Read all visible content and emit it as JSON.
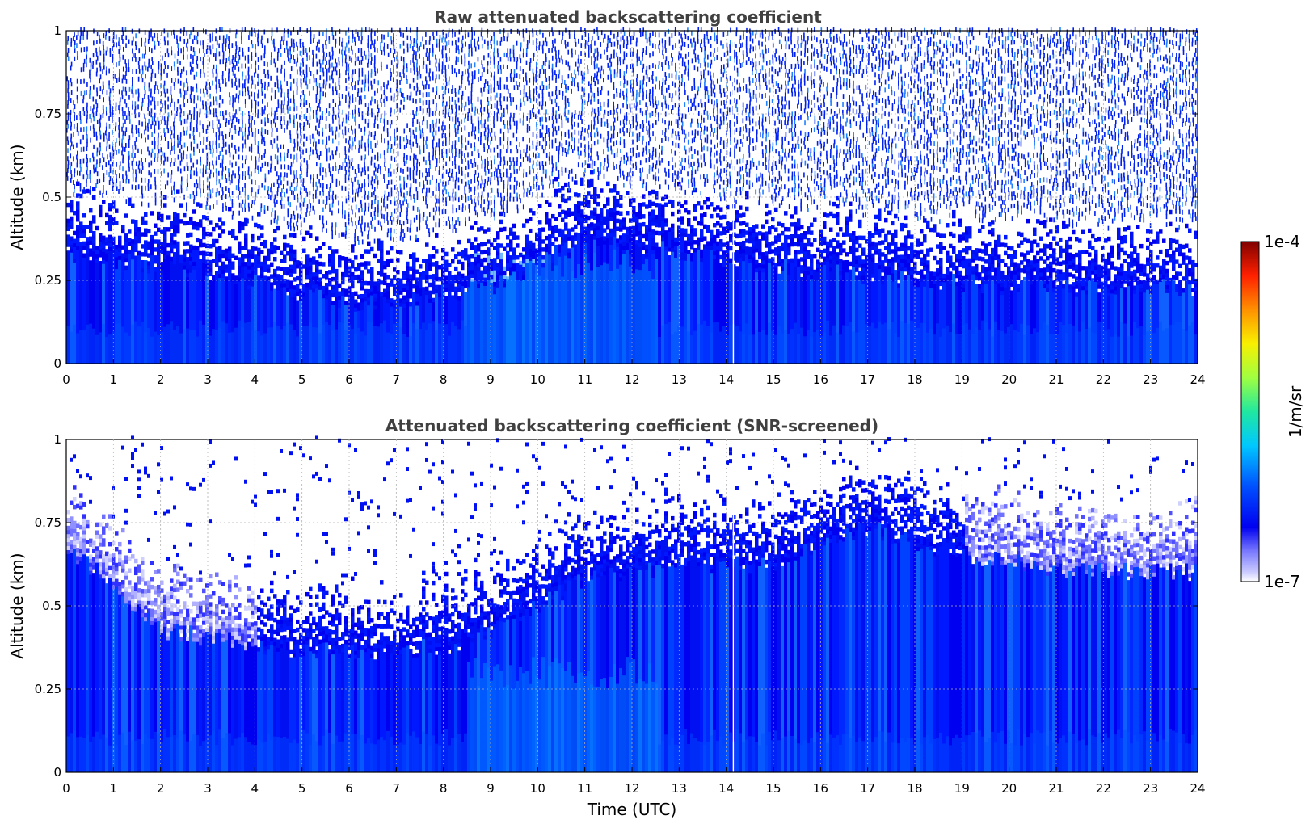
{
  "chart_data": [
    {
      "type": "heatmap",
      "title": "Raw attenuated backscattering coefficient",
      "xlabel": "",
      "ylabel": "Altitude (km)",
      "xlim": [
        0,
        24
      ],
      "ylim": [
        0,
        1
      ],
      "x_ticks": [
        "0",
        "1",
        "2",
        "3",
        "4",
        "5",
        "6",
        "7",
        "8",
        "9",
        "10",
        "11",
        "12",
        "13",
        "14",
        "15",
        "16",
        "17",
        "18",
        "19",
        "20",
        "21",
        "22",
        "23",
        "24"
      ],
      "y_ticks": [
        "0",
        "0.25",
        "0.5",
        "0.75",
        "1"
      ],
      "grid": true,
      "colormap": "jet (white at minimum)",
      "color_scale": "log",
      "description_fields": {
        "signal_layer_top_km_by_hour": [
          {
            "x": 0,
            "y": 0.45
          },
          {
            "x": 3,
            "y": 0.4
          },
          {
            "x": 6,
            "y": 0.3
          },
          {
            "x": 9,
            "y": 0.35
          },
          {
            "x": 11,
            "y": 0.5
          },
          {
            "x": 13,
            "y": 0.45
          },
          {
            "x": 16,
            "y": 0.4
          },
          {
            "x": 20,
            "y": 0.35
          },
          {
            "x": 24,
            "y": 0.35
          }
        ],
        "noise_above_km": 0.5
      }
    },
    {
      "type": "heatmap",
      "title": "Attenuated backscattering coefficient (SNR-screened)",
      "xlabel": "Time (UTC)",
      "ylabel": "Altitude (km)",
      "xlim": [
        0,
        24
      ],
      "ylim": [
        0,
        1
      ],
      "x_ticks": [
        "0",
        "1",
        "2",
        "3",
        "4",
        "5",
        "6",
        "7",
        "8",
        "9",
        "10",
        "11",
        "12",
        "13",
        "14",
        "15",
        "16",
        "17",
        "18",
        "19",
        "20",
        "21",
        "22",
        "23",
        "24"
      ],
      "y_ticks": [
        "0",
        "0.25",
        "0.5",
        "0.75",
        "1"
      ],
      "grid": true,
      "colormap": "jet (white at minimum)",
      "color_scale": "log",
      "description_fields": {
        "boundary_layer_top_km": [
          {
            "x": 0,
            "y": 0.8
          },
          {
            "x": 2,
            "y": 0.55
          },
          {
            "x": 4,
            "y": 0.5
          },
          {
            "x": 6,
            "y": 0.48
          },
          {
            "x": 8,
            "y": 0.5
          },
          {
            "x": 9,
            "y": 0.55
          },
          {
            "x": 11,
            "y": 0.7
          },
          {
            "x": 13,
            "y": 0.75
          },
          {
            "x": 15,
            "y": 0.75
          },
          {
            "x": 17,
            "y": 0.85
          },
          {
            "x": 18,
            "y": 0.8
          },
          {
            "x": 20,
            "y": 0.75
          },
          {
            "x": 22,
            "y": 0.72
          },
          {
            "x": 24,
            "y": 0.72
          }
        ]
      }
    }
  ],
  "colorbar": {
    "max_label": "1e-4",
    "min_label": "1e-7",
    "unit_label": "1/m/sr",
    "range": [
      1e-07,
      0.0001
    ],
    "scale": "log"
  },
  "colors": {
    "title": "#404040",
    "grid": "#b0b0b0",
    "dominant": "#0010f0",
    "near_surface": "#00a0ff"
  }
}
